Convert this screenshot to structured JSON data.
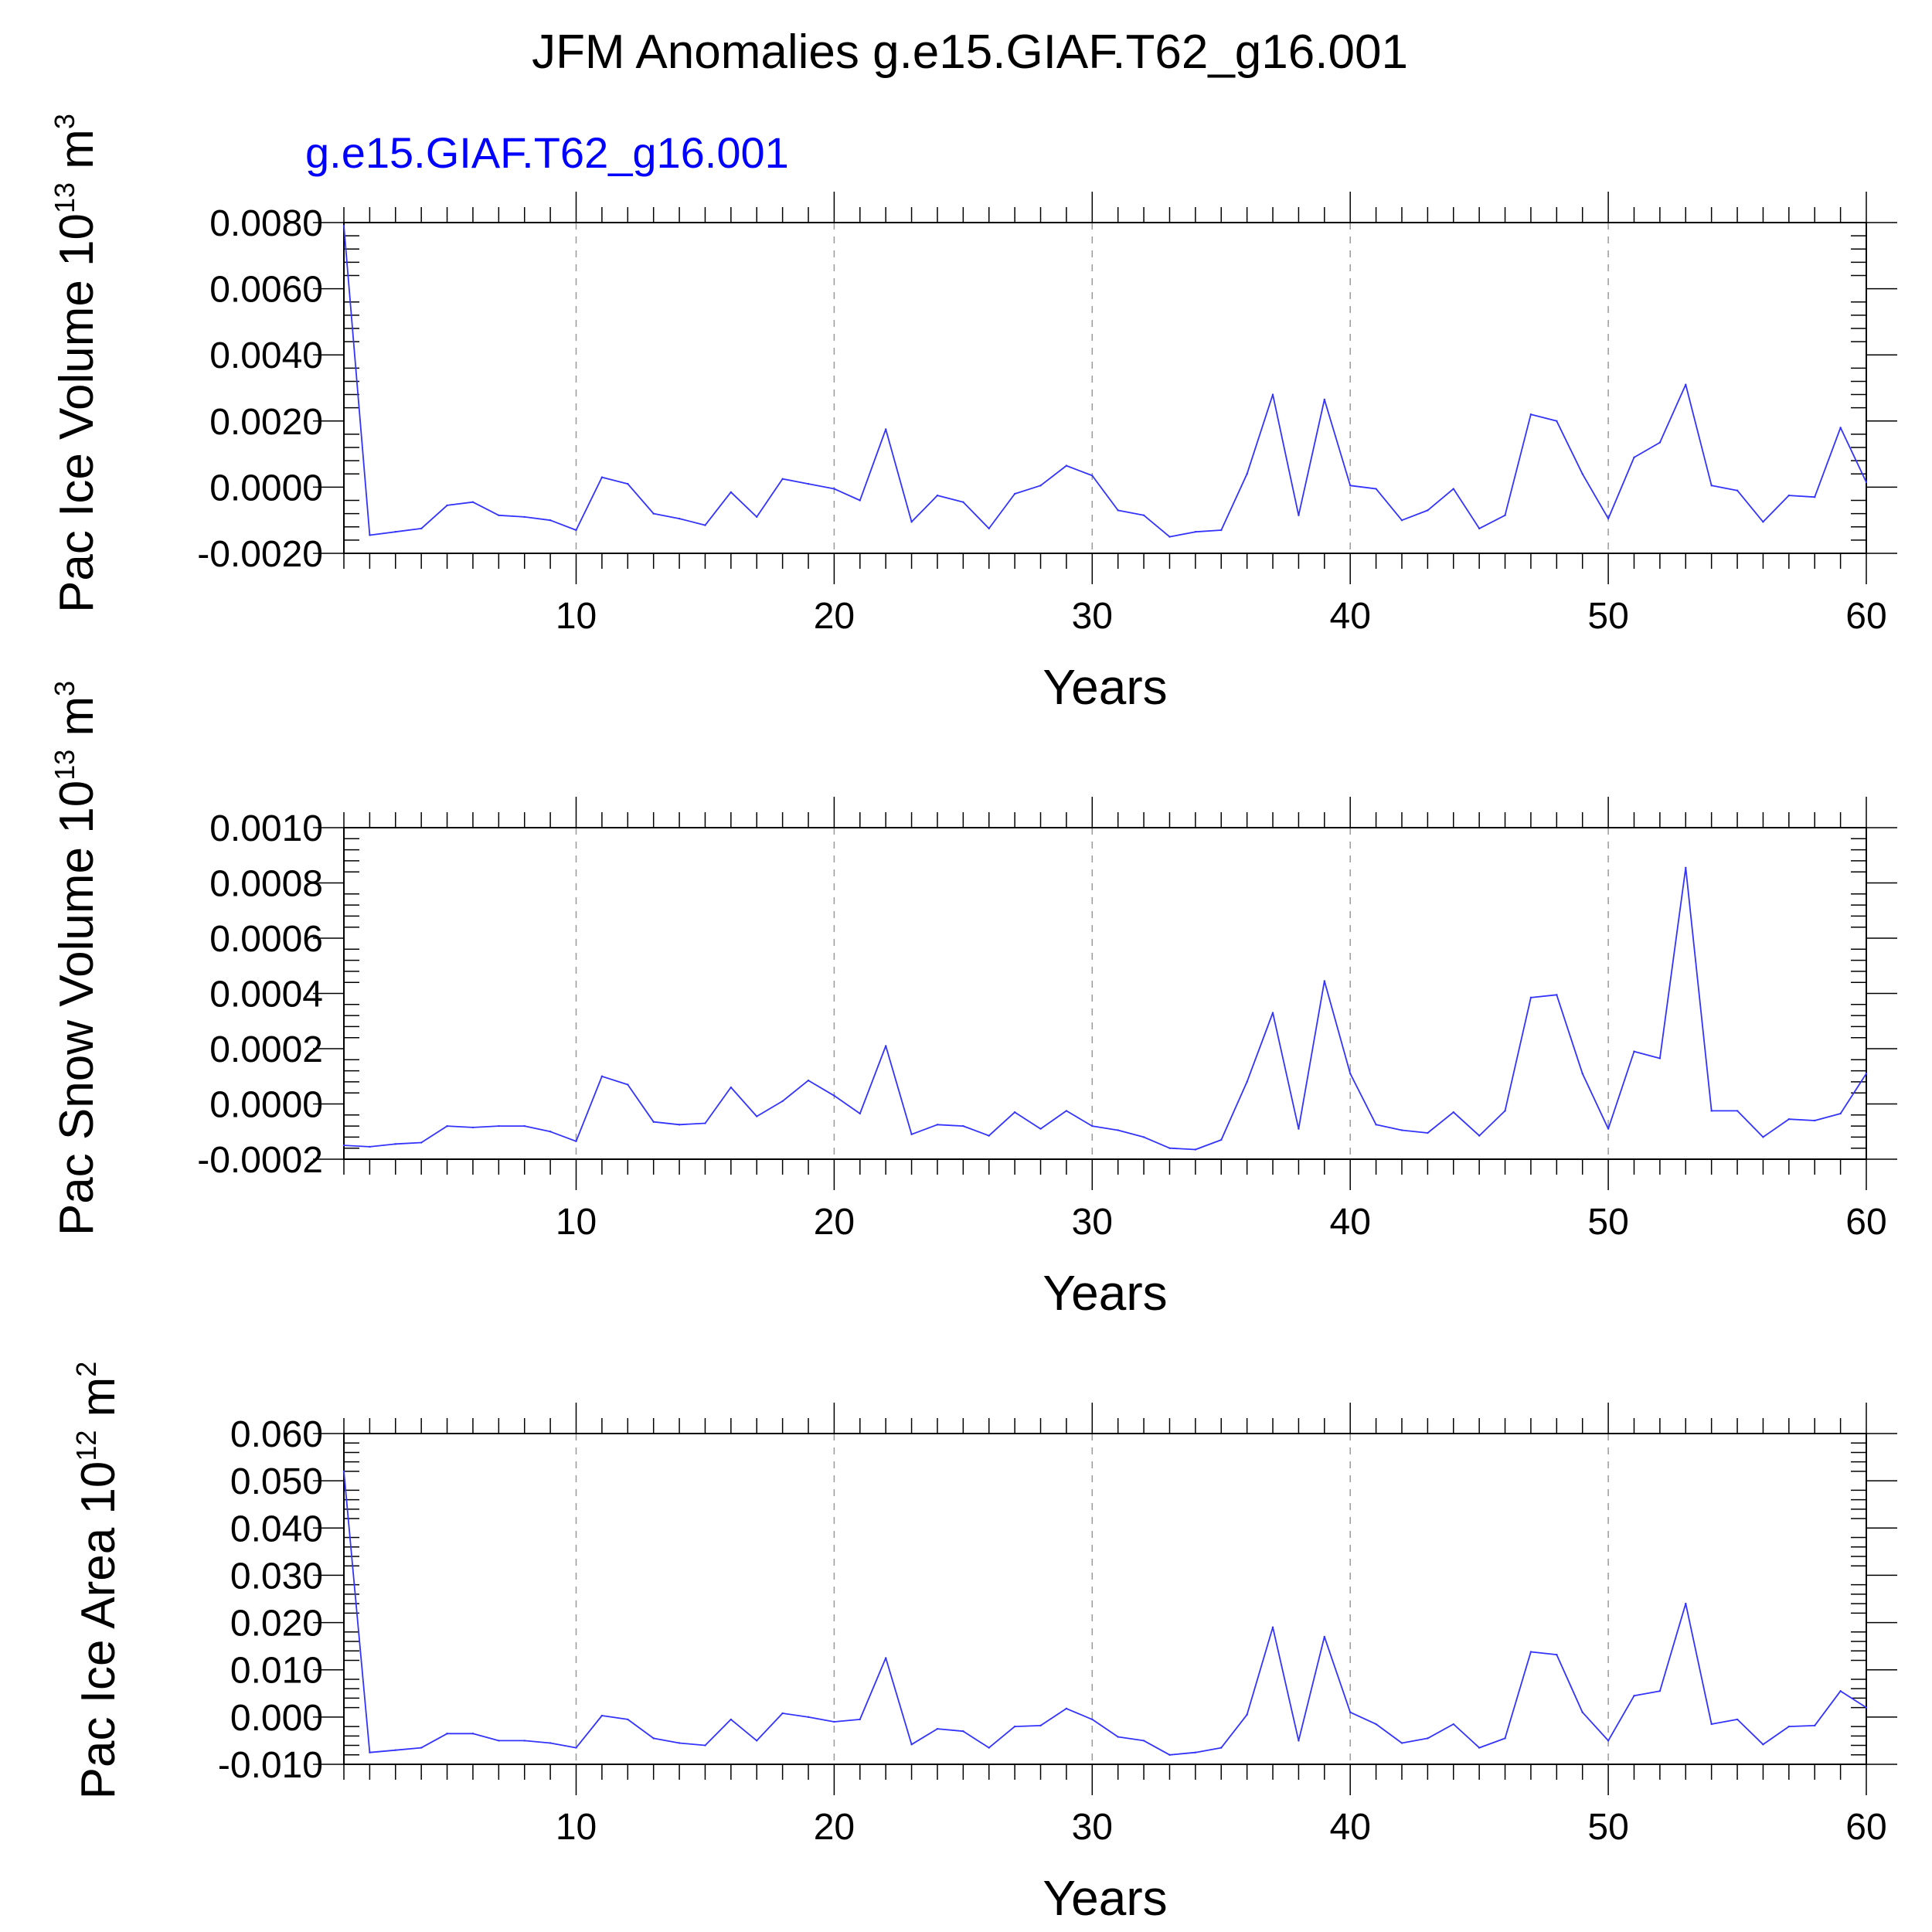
{
  "title": "JFM Anomalies g.e15.GIAF.T62_g16.001",
  "case_label": "g.e15.GIAF.T62_g16.001",
  "colors": {
    "series": "#3333ff",
    "case_label": "#0000ff",
    "axis": "#000000",
    "grid": "#999999"
  },
  "chart_data": [
    {
      "type": "line",
      "ylabel": "Pac Ice Volume 10",
      "ylabel_exp": "13",
      "ylabel_unit": "m",
      "ylabel_unit_exp": "3",
      "xlabel": "Years",
      "xlim": [
        1,
        60
      ],
      "ylim": [
        -0.002,
        0.008
      ],
      "xticks": [
        10,
        20,
        30,
        40,
        50,
        60
      ],
      "xtick_labels": [
        "10",
        "20",
        "30",
        "40",
        "50",
        "60"
      ],
      "yticks": [
        -0.002,
        0.0,
        0.002,
        0.004,
        0.006,
        0.008
      ],
      "ytick_labels": [
        "-0.0020",
        "0.0000",
        "0.0020",
        "0.0040",
        "0.0060",
        "0.0080"
      ],
      "x": [
        1,
        2,
        3,
        4,
        5,
        6,
        7,
        8,
        9,
        10,
        11,
        12,
        13,
        14,
        15,
        16,
        17,
        18,
        19,
        20,
        21,
        22,
        23,
        24,
        25,
        26,
        27,
        28,
        29,
        30,
        31,
        32,
        33,
        34,
        35,
        36,
        37,
        38,
        39,
        40,
        41,
        42,
        43,
        44,
        45,
        46,
        47,
        48,
        49,
        50,
        51,
        52,
        53,
        54,
        55,
        56,
        57,
        58,
        59,
        60
      ],
      "values": [
        0.0079,
        -0.00145,
        -0.00135,
        -0.00125,
        -0.00055,
        -0.00045,
        -0.00085,
        -0.0009,
        -0.001,
        -0.0013,
        0.0003,
        0.0001,
        -0.0008,
        -0.00095,
        -0.00115,
        -0.00015,
        -0.0009,
        0.00025,
        0.0001,
        -5e-05,
        -0.0004,
        0.00175,
        -0.00105,
        -0.00025,
        -0.00045,
        -0.00125,
        -0.0002,
        5e-05,
        0.00065,
        0.00035,
        -0.0007,
        -0.00085,
        -0.0015,
        -0.00135,
        -0.0013,
        0.0004,
        0.0028,
        -0.00085,
        0.00265,
        5e-05,
        -5e-05,
        -0.001,
        -0.0007,
        -5e-05,
        -0.00125,
        -0.00085,
        0.0022,
        0.002,
        0.0004,
        -0.00095,
        0.0009,
        0.00135,
        0.0031,
        5e-05,
        -0.0001,
        -0.00105,
        -0.00025,
        -0.0003,
        0.0018,
        0.00015
      ]
    },
    {
      "type": "line",
      "ylabel": "Pac Snow Volume 10",
      "ylabel_exp": "13",
      "ylabel_unit": "m",
      "ylabel_unit_exp": "3",
      "xlabel": "Years",
      "xlim": [
        1,
        60
      ],
      "ylim": [
        -0.0002,
        0.001
      ],
      "xticks": [
        10,
        20,
        30,
        40,
        50,
        60
      ],
      "xtick_labels": [
        "10",
        "20",
        "30",
        "40",
        "50",
        "60"
      ],
      "yticks": [
        -0.0002,
        0.0,
        0.0002,
        0.0004,
        0.0006,
        0.0008,
        0.001
      ],
      "ytick_labels": [
        "-0.0002",
        "0.0000",
        "0.0002",
        "0.0004",
        "0.0006",
        "0.0008",
        "0.0010"
      ],
      "x": [
        1,
        2,
        3,
        4,
        5,
        6,
        7,
        8,
        9,
        10,
        11,
        12,
        13,
        14,
        15,
        16,
        17,
        18,
        19,
        20,
        21,
        22,
        23,
        24,
        25,
        26,
        27,
        28,
        29,
        30,
        31,
        32,
        33,
        34,
        35,
        36,
        37,
        38,
        39,
        40,
        41,
        42,
        43,
        44,
        45,
        46,
        47,
        48,
        49,
        50,
        51,
        52,
        53,
        54,
        55,
        56,
        57,
        58,
        59,
        60
      ],
      "values": [
        -0.00015,
        -0.000155,
        -0.000145,
        -0.00014,
        -8e-05,
        -8.5e-05,
        -8e-05,
        -8e-05,
        -0.0001,
        -0.000135,
        0.0001,
        7e-05,
        -6.5e-05,
        -7.5e-05,
        -7e-05,
        6e-05,
        -4.5e-05,
        1e-05,
        8.5e-05,
        3e-05,
        -3.5e-05,
        0.00021,
        -0.00011,
        -7.5e-05,
        -8e-05,
        -0.000115,
        -3e-05,
        -9e-05,
        -2.5e-05,
        -8e-05,
        -9.5e-05,
        -0.00012,
        -0.00016,
        -0.000165,
        -0.00013,
        8e-05,
        0.00033,
        -9e-05,
        0.000445,
        0.00011,
        -7.5e-05,
        -9.5e-05,
        -0.000105,
        -3e-05,
        -0.000115,
        -2.5e-05,
        0.000385,
        0.000395,
        0.00011,
        -9e-05,
        0.00019,
        0.000165,
        0.000855,
        -2.5e-05,
        -2.5e-05,
        -0.00012,
        -5.5e-05,
        -6e-05,
        -3.5e-05,
        0.00011
      ]
    },
    {
      "type": "line",
      "ylabel": "Pac Ice Area 10",
      "ylabel_exp": "12",
      "ylabel_unit": "m",
      "ylabel_unit_exp": "2",
      "xlabel": "Years",
      "xlim": [
        1,
        60
      ],
      "ylim": [
        -0.01,
        0.06
      ],
      "xticks": [
        10,
        20,
        30,
        40,
        50,
        60
      ],
      "xtick_labels": [
        "10",
        "20",
        "30",
        "40",
        "50",
        "60"
      ],
      "yticks": [
        -0.01,
        0.0,
        0.01,
        0.02,
        0.03,
        0.04,
        0.05,
        0.06
      ],
      "ytick_labels": [
        "-0.010",
        "0.000",
        "0.010",
        "0.020",
        "0.030",
        "0.040",
        "0.050",
        "0.060"
      ],
      "x": [
        1,
        2,
        3,
        4,
        5,
        6,
        7,
        8,
        9,
        10,
        11,
        12,
        13,
        14,
        15,
        16,
        17,
        18,
        19,
        20,
        21,
        22,
        23,
        24,
        25,
        26,
        27,
        28,
        29,
        30,
        31,
        32,
        33,
        34,
        35,
        36,
        37,
        38,
        39,
        40,
        41,
        42,
        43,
        44,
        45,
        46,
        47,
        48,
        49,
        50,
        51,
        52,
        53,
        54,
        55,
        56,
        57,
        58,
        59,
        60
      ],
      "values": [
        0.052,
        -0.0075,
        -0.007,
        -0.0065,
        -0.0035,
        -0.0035,
        -0.005,
        -0.005,
        -0.0055,
        -0.0065,
        0.0003,
        -0.0005,
        -0.0045,
        -0.0055,
        -0.006,
        -0.0005,
        -0.005,
        0.0008,
        0.0,
        -0.001,
        -0.0005,
        0.0125,
        -0.0058,
        -0.0025,
        -0.003,
        -0.0065,
        -0.002,
        -0.0018,
        0.0018,
        -0.0005,
        -0.0042,
        -0.005,
        -0.008,
        -0.0075,
        -0.0065,
        0.0005,
        0.019,
        -0.005,
        0.017,
        0.001,
        -0.0015,
        -0.0055,
        -0.0045,
        -0.0015,
        -0.0065,
        -0.0045,
        0.0138,
        0.0132,
        0.001,
        -0.005,
        0.0045,
        0.0055,
        0.024,
        -0.0015,
        -0.0005,
        -0.0058,
        -0.002,
        -0.0018,
        0.0055,
        0.002
      ]
    }
  ]
}
